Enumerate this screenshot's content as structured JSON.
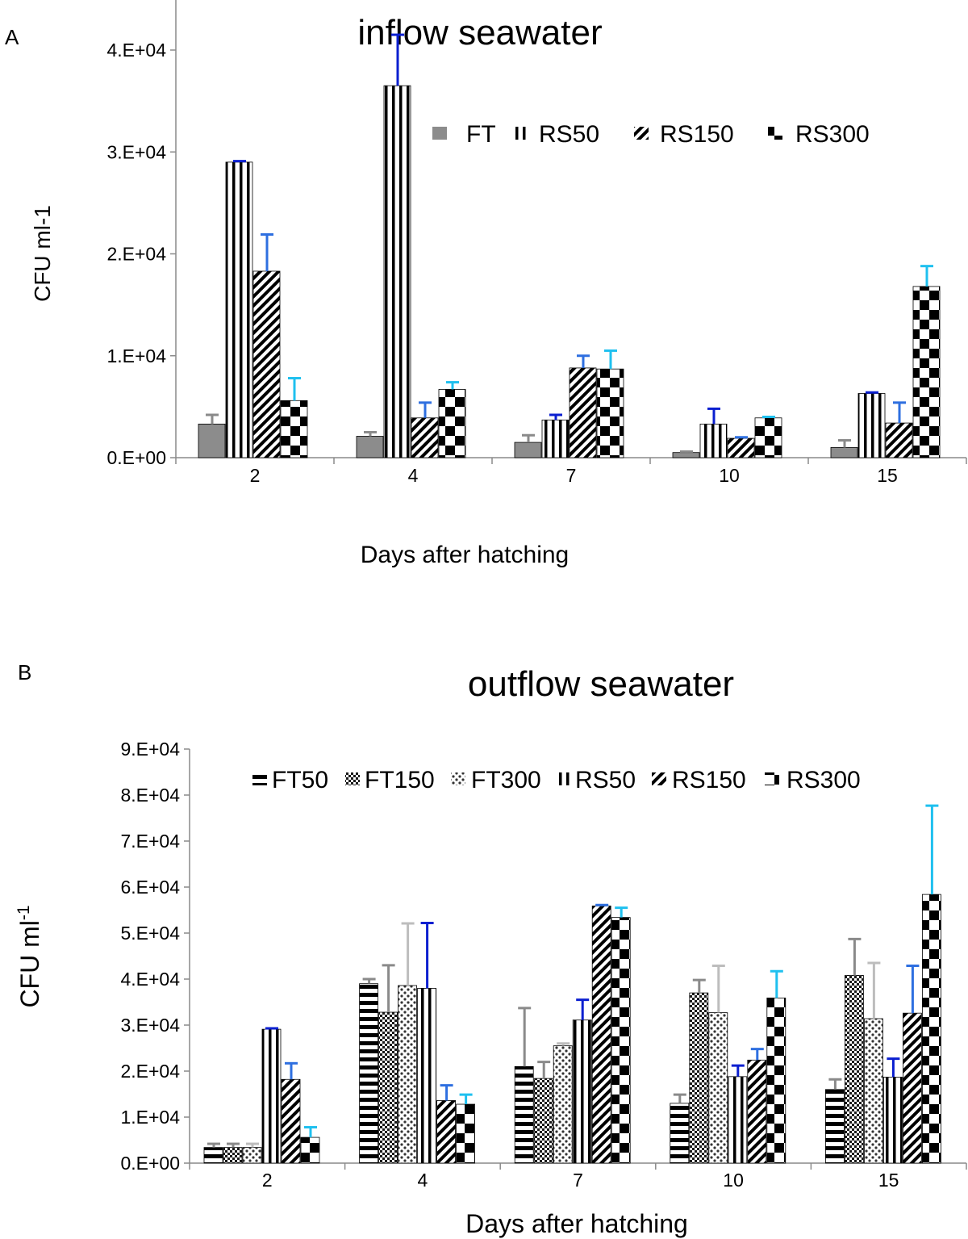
{
  "chart_data": [
    {
      "panel_label": "A",
      "type": "bar",
      "title": "inflow  seawater",
      "xlabel": "Days after hatching",
      "ylabel": "CFU ml-1",
      "ylim": [
        0,
        40000
      ],
      "yticks": [
        "0.E+00",
        "1.E+04",
        "2.E+04",
        "3.E+04",
        "4.E+04"
      ],
      "categories": [
        "2",
        "4",
        "7",
        "10",
        "15"
      ],
      "legend_position": "top-right",
      "series": [
        {
          "name": "FT",
          "pattern": "solid-gray",
          "error_color": "#8a8a8a",
          "values": [
            3300,
            2100,
            1500,
            500,
            1000
          ],
          "errors": [
            900,
            400,
            700,
            100,
            700
          ]
        },
        {
          "name": "RS50",
          "pattern": "vertical",
          "error_color": "#0b1fd0",
          "values": [
            29000,
            36500,
            3700,
            3300,
            6300
          ],
          "errors": [
            100,
            5000,
            500,
            1500,
            100
          ]
        },
        {
          "name": "RS150",
          "pattern": "diagonal",
          "error_color": "#2e6fe0",
          "values": [
            18300,
            3900,
            8800,
            1900,
            3400
          ],
          "errors": [
            3600,
            1500,
            1200,
            100,
            2000
          ]
        },
        {
          "name": "RS300",
          "pattern": "checker",
          "error_color": "#1fc0ef",
          "values": [
            5600,
            6700,
            8700,
            3900,
            16800
          ],
          "errors": [
            2200,
            700,
            1800,
            100,
            2000
          ]
        }
      ]
    },
    {
      "panel_label": "B",
      "type": "bar",
      "title": "outflow seawater",
      "xlabel": "Days after hatching",
      "ylabel": "CFU ml",
      "ylabel_superscript": "-1",
      "ylim": [
        0,
        90000
      ],
      "yticks": [
        "0.E+00",
        "1.E+04",
        "2.E+04",
        "3.E+04",
        "4.E+04",
        "5.E+04",
        "6.E+04",
        "7.E+04",
        "8.E+04",
        "9.E+04"
      ],
      "categories": [
        "2",
        "4",
        "7",
        "10",
        "15"
      ],
      "legend_position": "top",
      "series": [
        {
          "name": "FT50",
          "pattern": "horizontal",
          "error_color": "#8a8a8a",
          "values": [
            3400,
            39000,
            21000,
            13000,
            16000
          ],
          "errors": [
            800,
            1000,
            12700,
            1900,
            2200
          ]
        },
        {
          "name": "FT150",
          "pattern": "crosshatch",
          "error_color": "#8a8a8a",
          "values": [
            3400,
            32800,
            18400,
            37000,
            40800
          ],
          "errors": [
            800,
            10200,
            3600,
            2800,
            7900
          ]
        },
        {
          "name": "FT300",
          "pattern": "dots",
          "error_color": "#bdbdbd",
          "values": [
            3400,
            38600,
            25500,
            32700,
            31400
          ],
          "errors": [
            800,
            13500,
            500,
            10200,
            12100
          ]
        },
        {
          "name": "RS50",
          "pattern": "vertical",
          "error_color": "#0b1fd0",
          "values": [
            29100,
            38000,
            31100,
            18800,
            18700
          ],
          "errors": [
            200,
            14200,
            4400,
            2400,
            4000
          ]
        },
        {
          "name": "RS150",
          "pattern": "diagonal",
          "error_color": "#2e6fe0",
          "values": [
            18200,
            13600,
            55900,
            22400,
            32600
          ],
          "errors": [
            3500,
            3300,
            200,
            2400,
            10300
          ]
        },
        {
          "name": "RS300",
          "pattern": "checker",
          "error_color": "#1fc0ef",
          "values": [
            5600,
            12800,
            53400,
            35900,
            58400
          ],
          "errors": [
            2200,
            2100,
            2100,
            5800,
            19300
          ]
        }
      ]
    }
  ]
}
